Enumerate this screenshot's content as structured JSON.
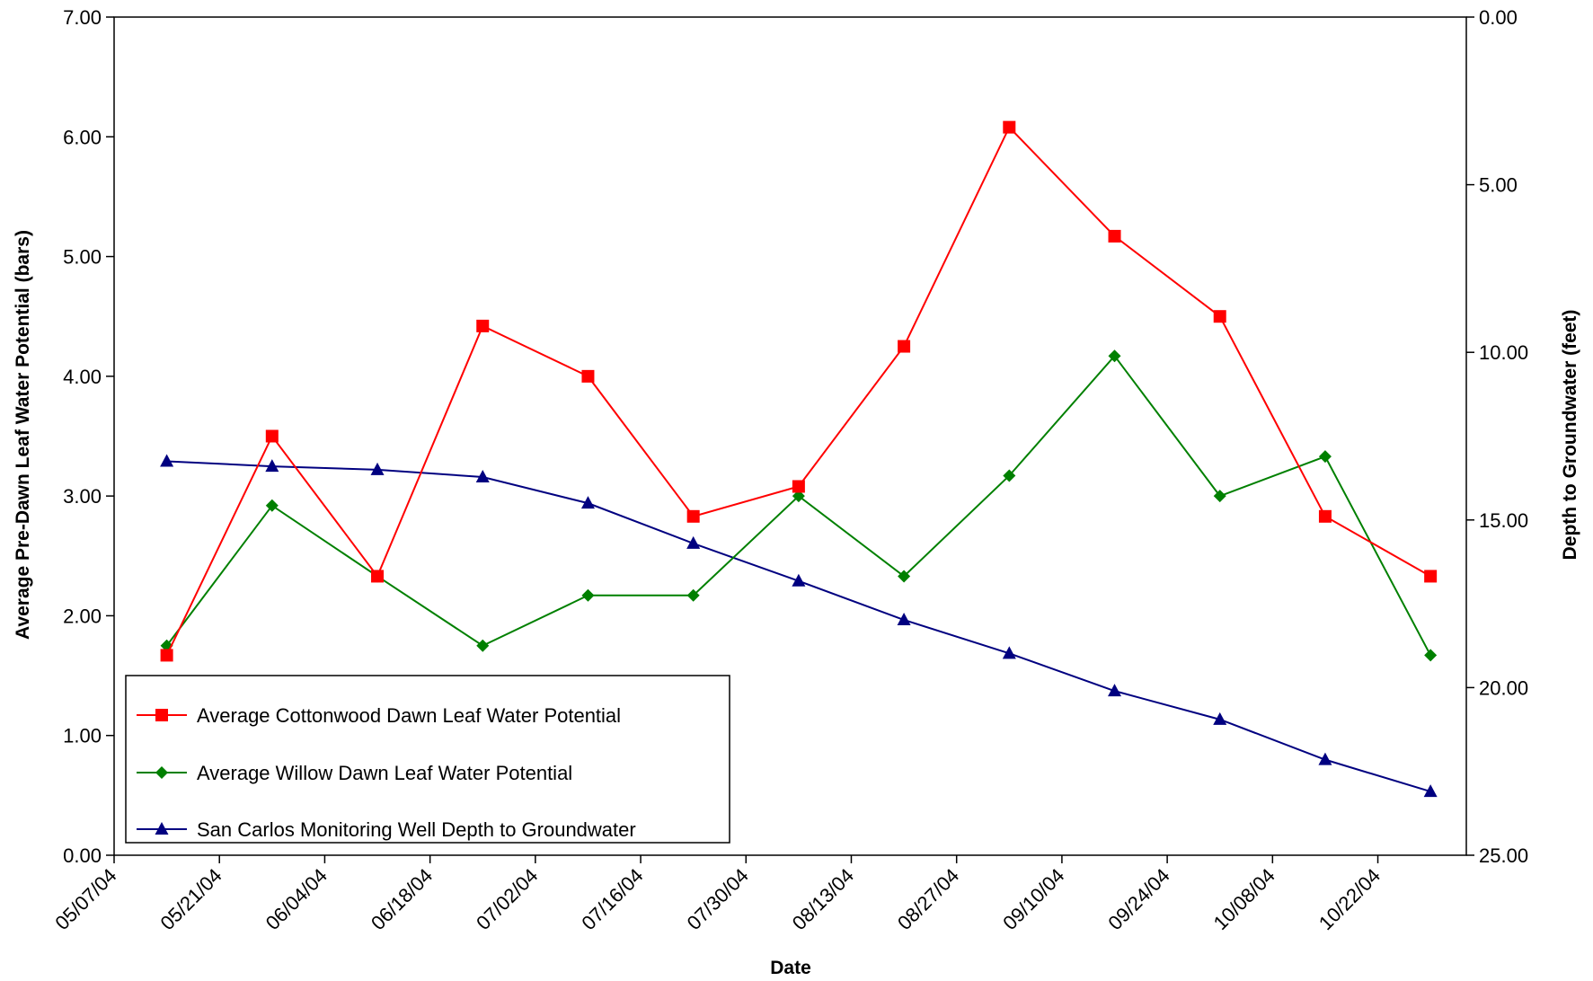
{
  "chart_data": {
    "type": "line",
    "xlabel": "Date",
    "ylabel_left": "Average Pre-Dawn Leaf Water Potential (bars)",
    "ylabel_right": "Depth to Groundwater (feet)",
    "x_ticks": [
      "05/07/04",
      "05/21/04",
      "06/04/04",
      "06/18/04",
      "07/02/04",
      "07/16/04",
      "07/30/04",
      "08/13/04",
      "08/27/04",
      "09/10/04",
      "09/24/04",
      "10/08/04",
      "10/22/04"
    ],
    "x_points": [
      "05/14/04",
      "05/28/04",
      "06/11/04",
      "06/25/04",
      "07/09/04",
      "07/23/04",
      "08/06/04",
      "08/20/04",
      "09/03/04",
      "09/17/04",
      "10/01/04",
      "10/15/04",
      "10/29/04"
    ],
    "y_left": {
      "min": 0,
      "max": 7,
      "ticks": [
        "0.00",
        "1.00",
        "2.00",
        "3.00",
        "4.00",
        "5.00",
        "6.00",
        "7.00"
      ]
    },
    "y_right": {
      "min": 0,
      "max": 25,
      "inverted": true,
      "ticks": [
        "0.00",
        "5.00",
        "10.00",
        "15.00",
        "20.00",
        "25.00"
      ]
    },
    "legend_position": "bottom-left",
    "series": [
      {
        "name": "Average Cottonwood Dawn Leaf Water Potential",
        "axis": "left",
        "color": "#ff0000",
        "marker": "square",
        "values": [
          1.67,
          3.5,
          2.33,
          4.42,
          4.0,
          2.83,
          3.08,
          4.25,
          6.08,
          5.17,
          4.5,
          2.83,
          2.33
        ]
      },
      {
        "name": "Average Willow Dawn Leaf Water Potential",
        "axis": "left",
        "color": "#008000",
        "marker": "diamond",
        "values": [
          1.75,
          2.92,
          2.33,
          1.75,
          2.17,
          2.17,
          3.0,
          2.33,
          3.17,
          4.17,
          3.0,
          3.33,
          1.67
        ]
      },
      {
        "name": "San Carlos Monitoring Well Depth to Groundwater",
        "axis": "right",
        "color": "#000080",
        "marker": "triangle",
        "values": [
          13.25,
          13.4,
          13.5,
          13.72,
          14.5,
          15.7,
          16.82,
          17.98,
          18.98,
          20.1,
          20.95,
          22.15,
          23.1
        ]
      }
    ]
  }
}
